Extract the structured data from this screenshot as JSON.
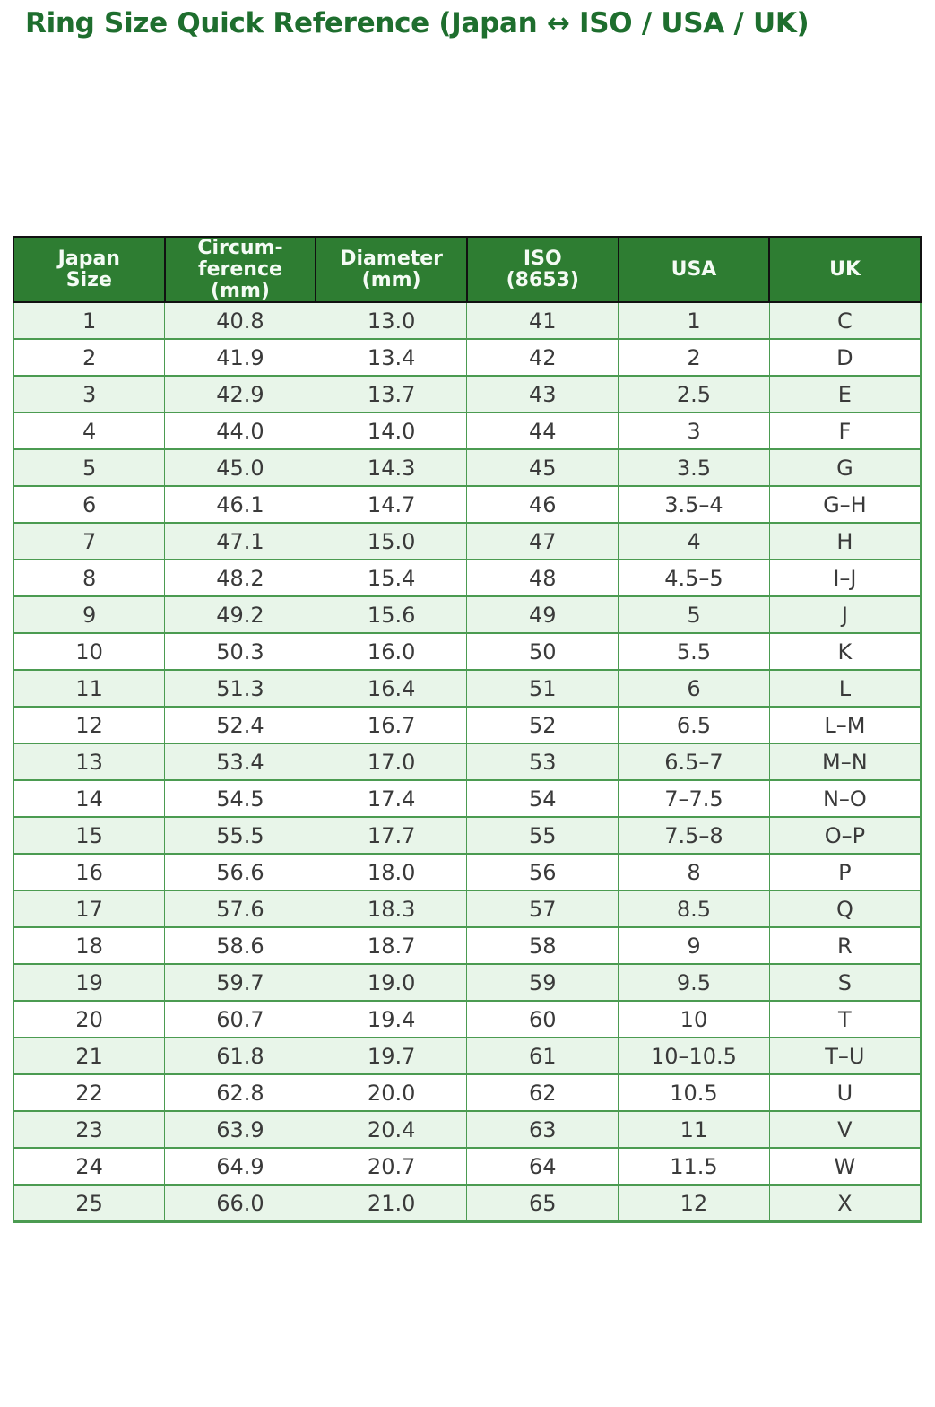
{
  "chart_data": {
    "type": "table",
    "title": "Ring Size Quick Reference (Japan ↔ ISO / USA / UK)",
    "columns": [
      "Japan\nSize",
      "Circum-\nference\n(mm)",
      "Diameter\n(mm)",
      "ISO\n(8653)",
      "USA",
      "UK"
    ],
    "rows": [
      [
        "1",
        "40.8",
        "13.0",
        "41",
        "1",
        "C"
      ],
      [
        "2",
        "41.9",
        "13.4",
        "42",
        "2",
        "D"
      ],
      [
        "3",
        "42.9",
        "13.7",
        "43",
        "2.5",
        "E"
      ],
      [
        "4",
        "44.0",
        "14.0",
        "44",
        "3",
        "F"
      ],
      [
        "5",
        "45.0",
        "14.3",
        "45",
        "3.5",
        "G"
      ],
      [
        "6",
        "46.1",
        "14.7",
        "46",
        "3.5–4",
        "G–H"
      ],
      [
        "7",
        "47.1",
        "15.0",
        "47",
        "4",
        "H"
      ],
      [
        "8",
        "48.2",
        "15.4",
        "48",
        "4.5–5",
        "I–J"
      ],
      [
        "9",
        "49.2",
        "15.6",
        "49",
        "5",
        "J"
      ],
      [
        "10",
        "50.3",
        "16.0",
        "50",
        "5.5",
        "K"
      ],
      [
        "11",
        "51.3",
        "16.4",
        "51",
        "6",
        "L"
      ],
      [
        "12",
        "52.4",
        "16.7",
        "52",
        "6.5",
        "L–M"
      ],
      [
        "13",
        "53.4",
        "17.0",
        "53",
        "6.5–7",
        "M–N"
      ],
      [
        "14",
        "54.5",
        "17.4",
        "54",
        "7–7.5",
        "N–O"
      ],
      [
        "15",
        "55.5",
        "17.7",
        "55",
        "7.5–8",
        "O–P"
      ],
      [
        "16",
        "56.6",
        "18.0",
        "56",
        "8",
        "P"
      ],
      [
        "17",
        "57.6",
        "18.3",
        "57",
        "8.5",
        "Q"
      ],
      [
        "18",
        "58.6",
        "18.7",
        "58",
        "9",
        "R"
      ],
      [
        "19",
        "59.7",
        "19.0",
        "59",
        "9.5",
        "S"
      ],
      [
        "20",
        "60.7",
        "19.4",
        "60",
        "10",
        "T"
      ],
      [
        "21",
        "61.8",
        "19.7",
        "61",
        "10–10.5",
        "T–U"
      ],
      [
        "22",
        "62.8",
        "20.0",
        "62",
        "10.5",
        "U"
      ],
      [
        "23",
        "63.9",
        "20.4",
        "63",
        "11",
        "V"
      ],
      [
        "24",
        "64.9",
        "20.7",
        "64",
        "11.5",
        "W"
      ],
      [
        "25",
        "66.0",
        "21.0",
        "65",
        "12",
        "X"
      ]
    ],
    "layout": {
      "grid": "on",
      "row_striping": "odd-rows-light-green",
      "header_position": "top"
    }
  },
  "colors": {
    "title": "#1e6e2e",
    "header_bg": "#2e7d32",
    "header_text": "#f4fbf4",
    "header_border": "#111111",
    "grid": "#4b9b51",
    "row_alt_bg": "#e8f5e9",
    "row_bg": "#ffffff",
    "cell_text": "#3a3a3a"
  }
}
